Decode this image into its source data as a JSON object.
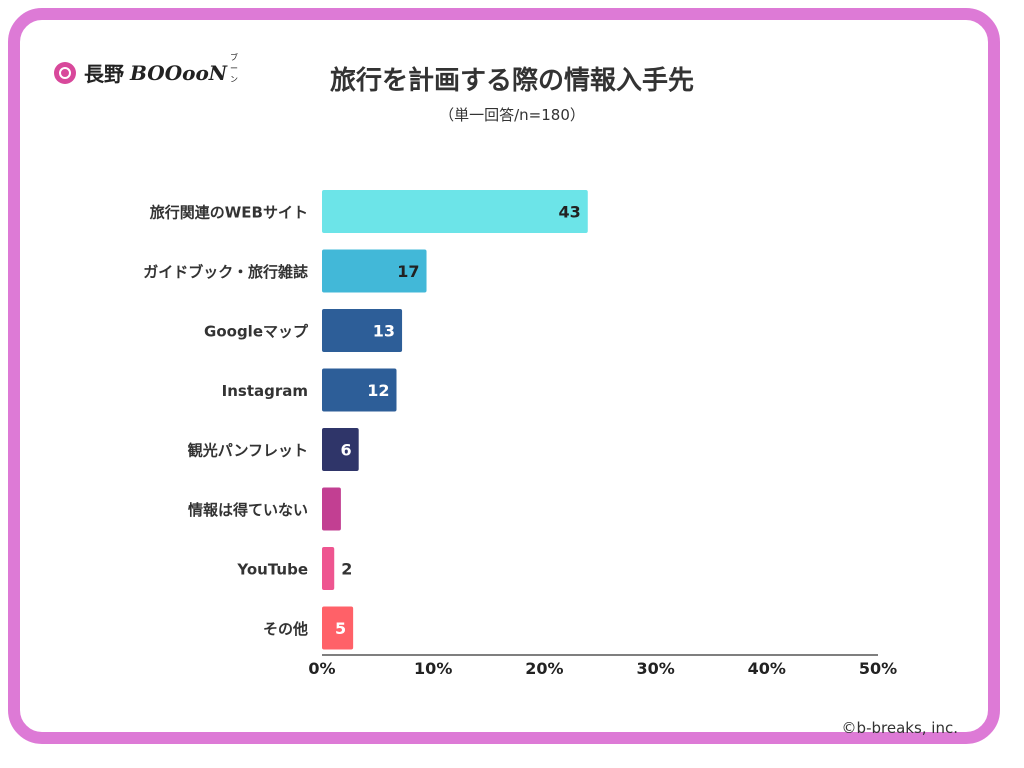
{
  "logo": {
    "text": "長野",
    "brand": "BOOooN",
    "ruby": "ブーン"
  },
  "chart_data": {
    "type": "bar",
    "orientation": "horizontal",
    "title": "旅行を計画する際の情報入手先",
    "subtitle": "（単一回答/n=180）",
    "categories": [
      "旅行関連のWEBサイト",
      "ガイドブック・旅行雑誌",
      "Googleマップ",
      "Instagram",
      "観光パンフレット",
      "情報は得ていない",
      "YouTube",
      "その他"
    ],
    "values": [
      43,
      17,
      13,
      12,
      6,
      3,
      2,
      5
    ],
    "percent_values": [
      23.9,
      9.4,
      7.2,
      6.7,
      3.3,
      1.7,
      1.1,
      2.8
    ],
    "xaxis_ticks": [
      "0%",
      "10%",
      "20%",
      "30%",
      "40%",
      "50%"
    ],
    "xlim": [
      0,
      50
    ],
    "grid": false,
    "bar_colors": [
      "#6ce4e8",
      "#42b8d8",
      "#2d5e98",
      "#2d5e98",
      "#2f3569",
      "#c23f92",
      "#ee5590",
      "#ff6168"
    ],
    "label_colors": [
      "#222222",
      "#222222",
      "#ffffff",
      "#ffffff",
      "#ffffff",
      "#ffffff",
      "#333333",
      "#ffffff"
    ]
  },
  "copyright": "©b-breaks, inc."
}
